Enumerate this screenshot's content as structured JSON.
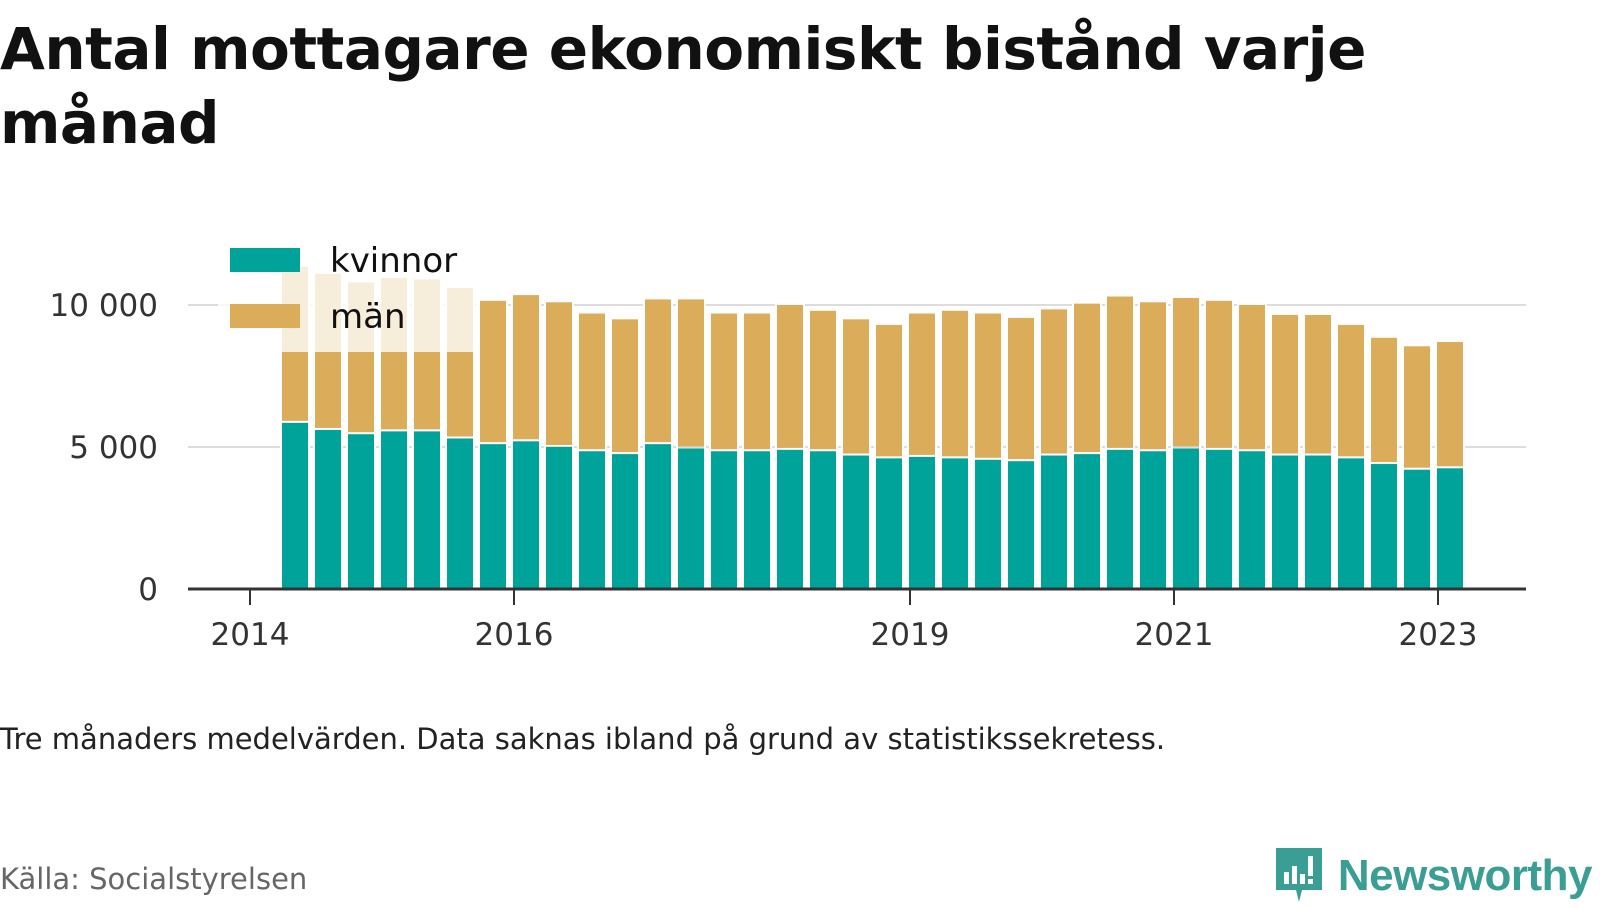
{
  "title": "Antal mottagare ekonomiskt bistånd varje månad",
  "note": "Tre månaders medelvärden. Data saknas ibland på grund av statistikssekretess.",
  "source": "Källa: Socialstyrelsen",
  "brand": {
    "name": "Newsworthy",
    "logo_icon": "newsworthy-logo-icon",
    "color": "#3a9e94"
  },
  "chart_data": {
    "type": "bar",
    "stacked": true,
    "x_axis_labels": [
      "2014",
      "2016",
      "2019",
      "2021",
      "2023"
    ],
    "y_ticks": [
      {
        "value": 0,
        "label": "0"
      },
      {
        "value": 5000,
        "label": "5 000"
      },
      {
        "value": 10000,
        "label": "10 000"
      }
    ],
    "ylim": [
      0,
      11000
    ],
    "grid": true,
    "legend_position": "top-left",
    "series": [
      {
        "name": "kvinnor",
        "color": "#00a39a",
        "values": [
          5850,
          5600,
          5450,
          5550,
          5550,
          5300,
          5100,
          5200,
          5000,
          4850,
          4750,
          5100,
          4950,
          4850,
          4850,
          4900,
          4850,
          4700,
          4600,
          4650,
          4600,
          4550,
          4500,
          4700,
          4750,
          4900,
          4850,
          4950,
          4900,
          4850,
          4700,
          4700,
          4600,
          4400,
          4200,
          4250
        ]
      },
      {
        "name": "män",
        "color": "#dbad5a",
        "values": [
          5500,
          5500,
          5350,
          5400,
          5350,
          5300,
          5050,
          5150,
          5100,
          4850,
          4750,
          5100,
          5250,
          4850,
          4850,
          5100,
          4950,
          4800,
          4700,
          5050,
          5200,
          5150,
          5050,
          5150,
          5300,
          5400,
          5250,
          5300,
          5250,
          5150,
          4950,
          4950,
          4700,
          4450,
          4350,
          4450
        ]
      }
    ]
  }
}
